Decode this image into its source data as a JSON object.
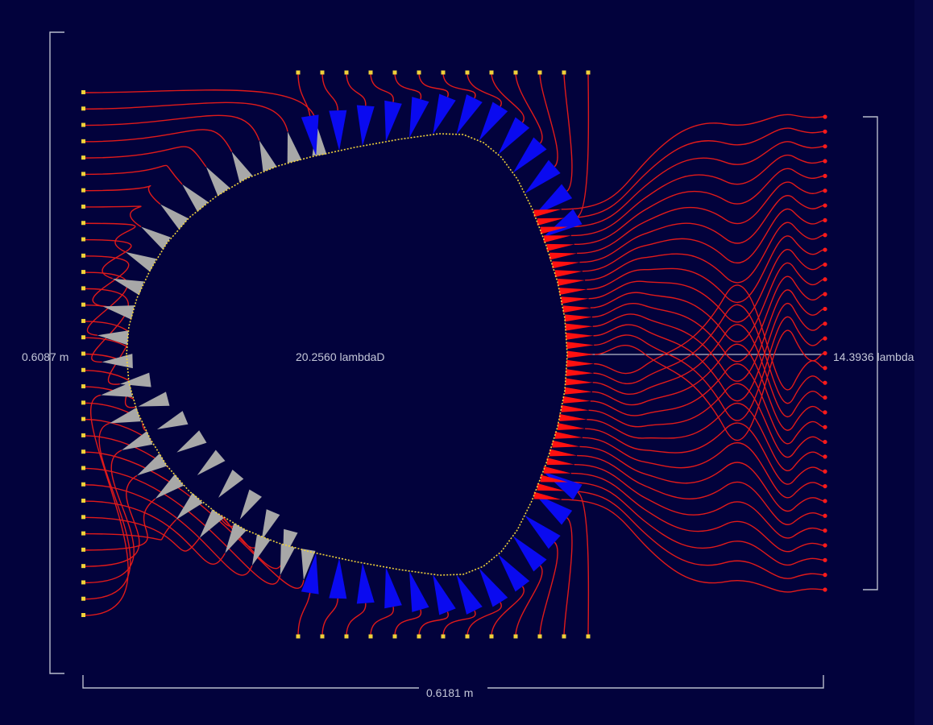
{
  "labels": {
    "height_dimension": "0.6087 m",
    "width_dimension": "0.6181 m",
    "center_span": "20.2560 lambdaD",
    "output_port_span": "14.3936 lambda"
  },
  "colors": {
    "background": "#02023c",
    "background_strip": "#070746",
    "trace": "#e01a1a",
    "left_ports": "#f0d23a",
    "tb_ports": "#f0d23a",
    "right_ports": "#ff1a1a",
    "left_elements": "#a8a8a8",
    "top_bottom_elements": "#0a0af0",
    "right_elements": "#ff1010",
    "dimension_lines": "#b8bccc",
    "lens_outline": "#f0d23a"
  },
  "counts": {
    "left_ports": 33,
    "top_ports": 13,
    "bottom_ports": 13,
    "right_ports": 33
  },
  "icons": [
    "bracket-dimension-icon"
  ]
}
